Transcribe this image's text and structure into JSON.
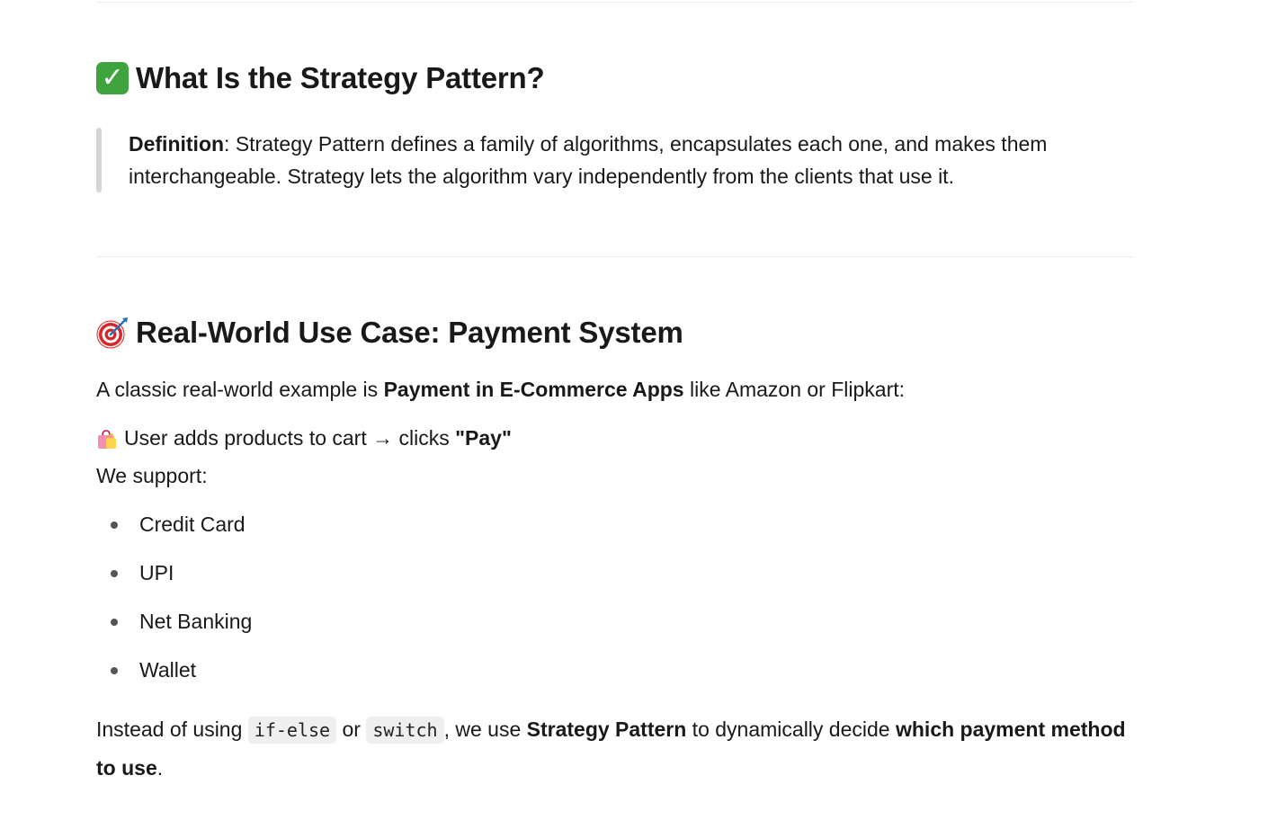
{
  "section1": {
    "heading": "What Is the Strategy Pattern?",
    "heading_icon": "check-mark-button-icon",
    "definition_label": "Definition",
    "definition_text": ": Strategy Pattern defines a family of algorithms, encapsulates each one, and makes them interchangeable. Strategy lets the algorithm vary independently from the clients that use it."
  },
  "section2": {
    "heading_prefix": "Real-World Use Case: ",
    "heading_bold": "Payment System",
    "heading_icon": "direct-hit-target-icon",
    "intro_prefix": "A classic real-world example is ",
    "intro_bold": "Payment in E-Commerce Apps",
    "intro_suffix": " like Amazon or Flipkart:",
    "user_icon": "shopping-bags-icon",
    "user_text": "User adds products to cart → clicks ",
    "user_bold": "\"Pay\"",
    "support_text": "We support:",
    "methods": [
      "Credit Card",
      "UPI",
      "Net Banking",
      "Wallet"
    ],
    "closing": {
      "p1": "Instead of using ",
      "code1": "if-else",
      "p2": " or ",
      "code2": "switch",
      "p3": ", we use ",
      "bold1": "Strategy Pattern",
      "p4": " to dynamically decide ",
      "bold2": "which payment method to use",
      "p5": "."
    }
  }
}
